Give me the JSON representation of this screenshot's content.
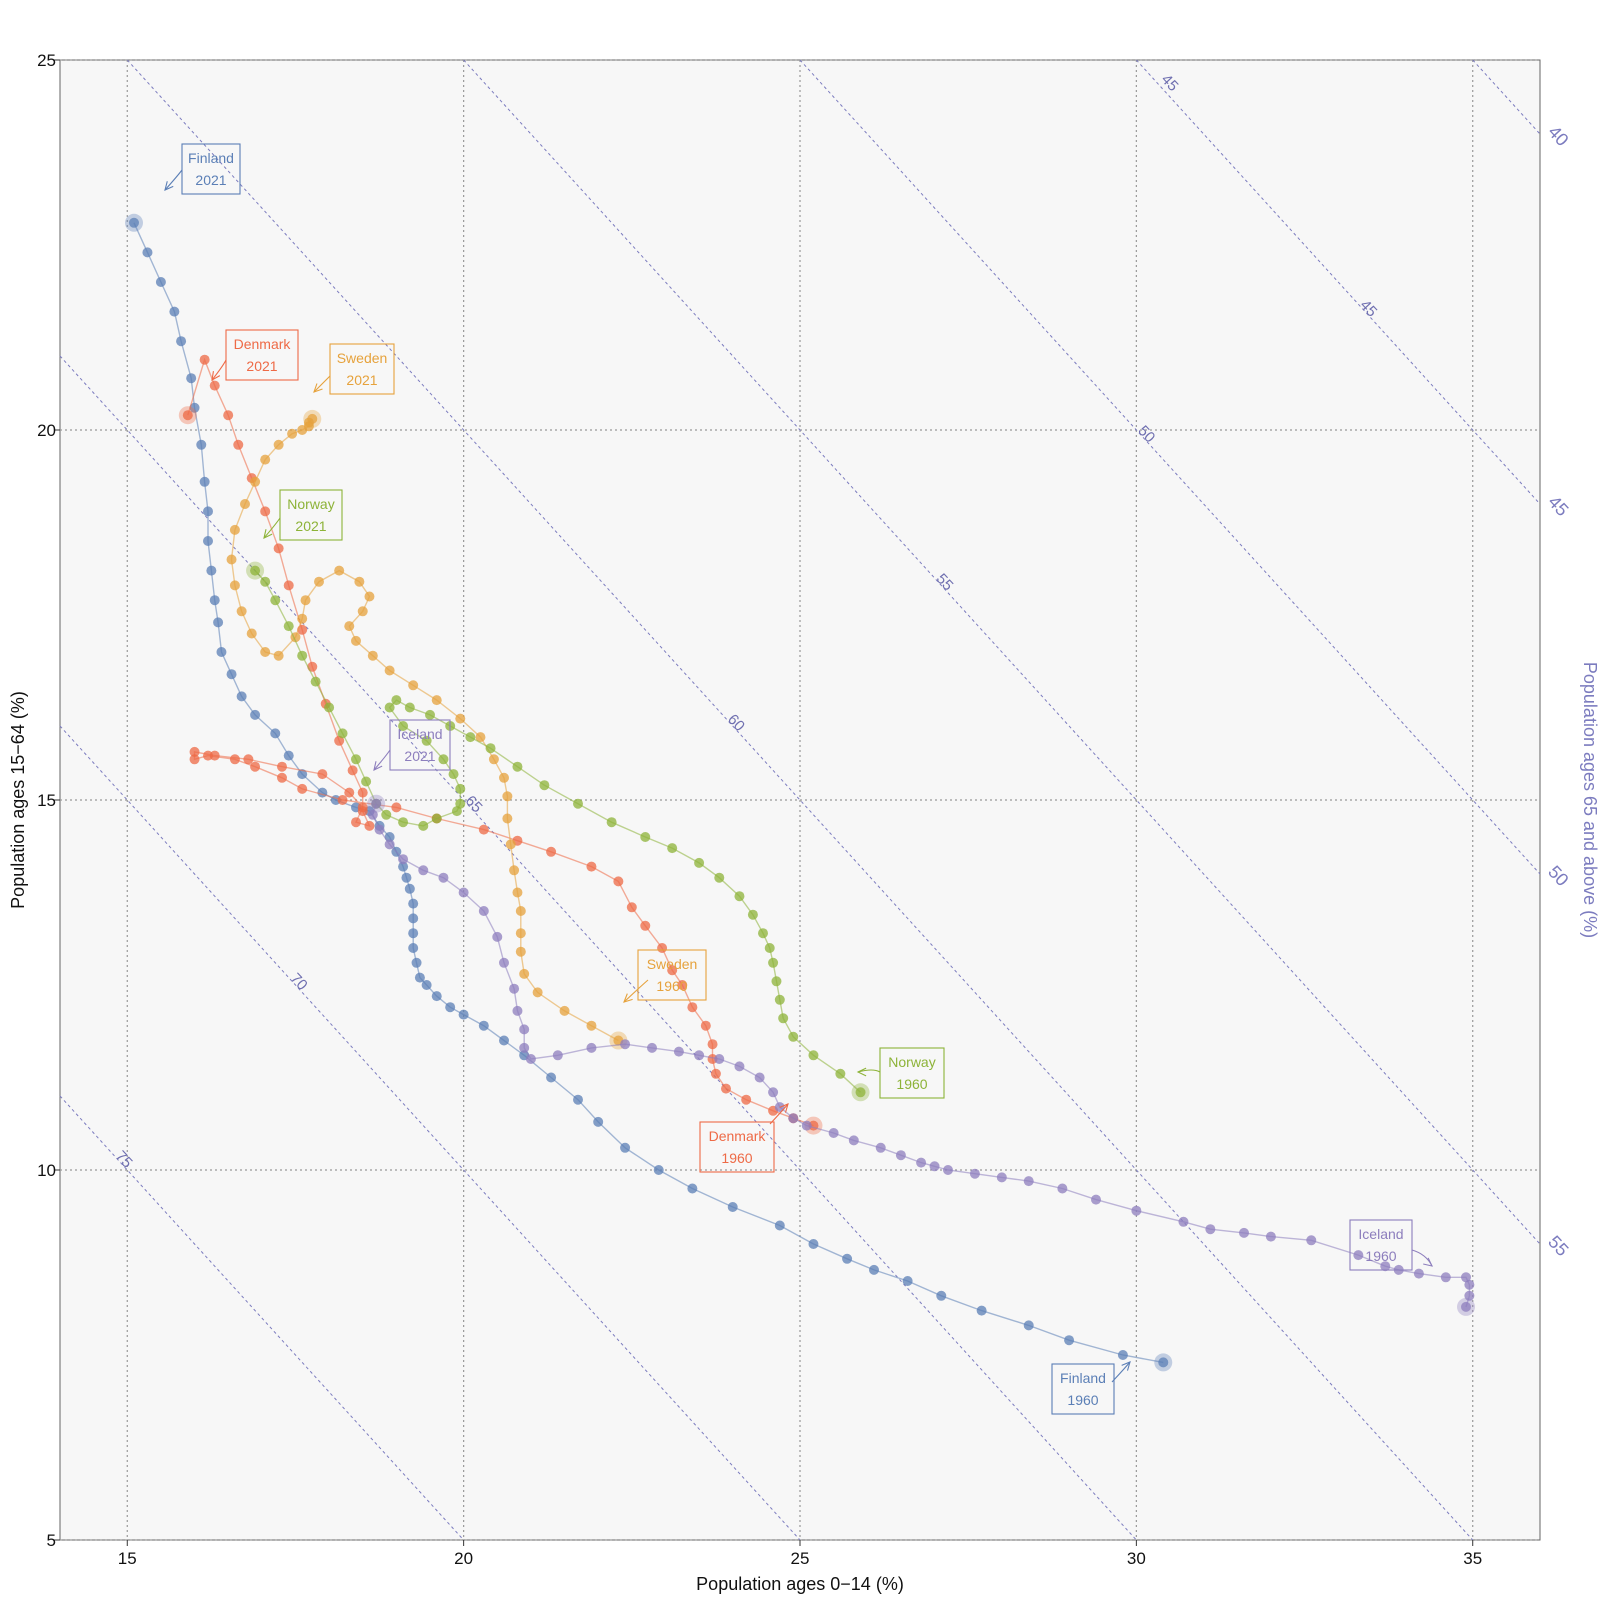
{
  "chart_data": {
    "type": "scatter",
    "xlabel": "Population ages 0−14 (%)",
    "ylabel": "Population ages 15−64 (%)",
    "right_label": "Population ages 65 and above (%)",
    "xlim": [
      14,
      36
    ],
    "ylim": [
      5,
      25
    ],
    "xticks": [
      "15",
      "20",
      "25",
      "30",
      "35"
    ],
    "yticks": [
      "5",
      "10",
      "15",
      "20",
      "25"
    ],
    "iso_lines": [
      40,
      45,
      50,
      55,
      60,
      65,
      70,
      75
    ],
    "iso_labels": [
      "40",
      "45",
      "45",
      "50",
      "50",
      "55",
      "55",
      "60",
      "65",
      "70",
      "75"
    ],
    "right_ticks": [
      "40",
      "45",
      "50",
      "55"
    ],
    "grid": true,
    "series": [
      {
        "name": "Finland",
        "color": "#5b7fb6",
        "start": "1960",
        "end": "2021",
        "points": [
          [
            30.4,
            7.4
          ],
          [
            29.8,
            7.5
          ],
          [
            29.0,
            7.7
          ],
          [
            28.4,
            7.9
          ],
          [
            27.7,
            8.1
          ],
          [
            27.1,
            8.3
          ],
          [
            26.6,
            8.5
          ],
          [
            26.1,
            8.65
          ],
          [
            25.7,
            8.8
          ],
          [
            25.2,
            9.0
          ],
          [
            24.7,
            9.25
          ],
          [
            24.0,
            9.5
          ],
          [
            23.4,
            9.75
          ],
          [
            22.9,
            10.0
          ],
          [
            22.4,
            10.3
          ],
          [
            22.0,
            10.65
          ],
          [
            21.7,
            10.95
          ],
          [
            21.3,
            11.25
          ],
          [
            20.9,
            11.55
          ],
          [
            20.6,
            11.75
          ],
          [
            20.3,
            11.95
          ],
          [
            20.0,
            12.1
          ],
          [
            19.8,
            12.2
          ],
          [
            19.6,
            12.35
          ],
          [
            19.45,
            12.5
          ],
          [
            19.35,
            12.6
          ],
          [
            19.3,
            12.8
          ],
          [
            19.25,
            13.0
          ],
          [
            19.25,
            13.2
          ],
          [
            19.25,
            13.4
          ],
          [
            19.25,
            13.6
          ],
          [
            19.2,
            13.8
          ],
          [
            19.15,
            13.95
          ],
          [
            19.1,
            14.1
          ],
          [
            19.0,
            14.3
          ],
          [
            18.9,
            14.5
          ],
          [
            18.75,
            14.65
          ],
          [
            18.6,
            14.85
          ],
          [
            18.4,
            14.9
          ],
          [
            18.1,
            15.0
          ],
          [
            17.9,
            15.1
          ],
          [
            17.6,
            15.35
          ],
          [
            17.4,
            15.6
          ],
          [
            17.2,
            15.9
          ],
          [
            16.9,
            16.15
          ],
          [
            16.7,
            16.4
          ],
          [
            16.55,
            16.7
          ],
          [
            16.4,
            17.0
          ],
          [
            16.35,
            17.4
          ],
          [
            16.3,
            17.7
          ],
          [
            16.25,
            18.1
          ],
          [
            16.2,
            18.5
          ],
          [
            16.2,
            18.9
          ],
          [
            16.15,
            19.3
          ],
          [
            16.1,
            19.8
          ],
          [
            16.0,
            20.3
          ],
          [
            15.95,
            20.7
          ],
          [
            15.8,
            21.2
          ],
          [
            15.7,
            21.6
          ],
          [
            15.5,
            22.0
          ],
          [
            15.3,
            22.4
          ],
          [
            15.1,
            22.8
          ]
        ]
      },
      {
        "name": "Denmark",
        "color": "#ee6a46",
        "start": "1960",
        "end": "2021",
        "points": [
          [
            25.2,
            10.6
          ],
          [
            24.9,
            10.7
          ],
          [
            24.6,
            10.8
          ],
          [
            24.2,
            10.95
          ],
          [
            23.9,
            11.1
          ],
          [
            23.75,
            11.3
          ],
          [
            23.7,
            11.5
          ],
          [
            23.7,
            11.7
          ],
          [
            23.6,
            11.95
          ],
          [
            23.4,
            12.2
          ],
          [
            23.25,
            12.5
          ],
          [
            23.1,
            12.7
          ],
          [
            22.95,
            13.0
          ],
          [
            22.7,
            13.3
          ],
          [
            22.5,
            13.55
          ],
          [
            22.3,
            13.9
          ],
          [
            21.9,
            14.1
          ],
          [
            21.3,
            14.3
          ],
          [
            20.8,
            14.45
          ],
          [
            20.3,
            14.6
          ],
          [
            19.6,
            14.75
          ],
          [
            19.0,
            14.9
          ],
          [
            18.2,
            15.0
          ],
          [
            17.6,
            15.15
          ],
          [
            17.3,
            15.3
          ],
          [
            16.9,
            15.45
          ],
          [
            16.6,
            15.55
          ],
          [
            16.2,
            15.6
          ],
          [
            16.0,
            15.55
          ],
          [
            16.0,
            15.65
          ],
          [
            16.3,
            15.6
          ],
          [
            16.8,
            15.55
          ],
          [
            17.3,
            15.45
          ],
          [
            17.9,
            15.35
          ],
          [
            18.3,
            15.1
          ],
          [
            18.5,
            14.9
          ],
          [
            18.4,
            14.7
          ],
          [
            18.6,
            14.65
          ],
          [
            18.5,
            14.85
          ],
          [
            18.5,
            15.1
          ],
          [
            18.35,
            15.4
          ],
          [
            18.15,
            15.8
          ],
          [
            17.95,
            16.3
          ],
          [
            17.75,
            16.8
          ],
          [
            17.6,
            17.3
          ],
          [
            17.4,
            17.9
          ],
          [
            17.25,
            18.4
          ],
          [
            17.05,
            18.9
          ],
          [
            16.85,
            19.35
          ],
          [
            16.65,
            19.8
          ],
          [
            16.5,
            20.2
          ],
          [
            16.3,
            20.6
          ],
          [
            16.15,
            20.95
          ],
          [
            15.9,
            20.2
          ]
        ]
      },
      {
        "name": "Sweden",
        "color": "#e6a23c",
        "start": "1960",
        "end": "2021",
        "points": [
          [
            22.3,
            11.75
          ],
          [
            21.9,
            11.95
          ],
          [
            21.5,
            12.15
          ],
          [
            21.1,
            12.4
          ],
          [
            20.9,
            12.65
          ],
          [
            20.85,
            12.95
          ],
          [
            20.85,
            13.2
          ],
          [
            20.85,
            13.5
          ],
          [
            20.8,
            13.75
          ],
          [
            20.75,
            14.05
          ],
          [
            20.7,
            14.4
          ],
          [
            20.65,
            14.75
          ],
          [
            20.65,
            15.05
          ],
          [
            20.6,
            15.3
          ],
          [
            20.45,
            15.55
          ],
          [
            20.25,
            15.85
          ],
          [
            19.95,
            16.1
          ],
          [
            19.6,
            16.35
          ],
          [
            19.25,
            16.55
          ],
          [
            18.9,
            16.75
          ],
          [
            18.65,
            16.95
          ],
          [
            18.4,
            17.15
          ],
          [
            18.3,
            17.35
          ],
          [
            18.5,
            17.55
          ],
          [
            18.6,
            17.75
          ],
          [
            18.45,
            17.95
          ],
          [
            18.15,
            18.1
          ],
          [
            17.85,
            17.95
          ],
          [
            17.65,
            17.7
          ],
          [
            17.6,
            17.45
          ],
          [
            17.5,
            17.2
          ],
          [
            17.25,
            16.95
          ],
          [
            17.05,
            17.0
          ],
          [
            16.85,
            17.25
          ],
          [
            16.7,
            17.55
          ],
          [
            16.6,
            17.9
          ],
          [
            16.55,
            18.25
          ],
          [
            16.6,
            18.65
          ],
          [
            16.75,
            19.0
          ],
          [
            16.9,
            19.3
          ],
          [
            17.05,
            19.6
          ],
          [
            17.25,
            19.8
          ],
          [
            17.45,
            19.95
          ],
          [
            17.6,
            20.0
          ],
          [
            17.7,
            20.05
          ],
          [
            17.7,
            20.1
          ],
          [
            17.75,
            20.15
          ]
        ]
      },
      {
        "name": "Norway",
        "color": "#8db338",
        "start": "1960",
        "end": "2021",
        "points": [
          [
            25.9,
            11.05
          ],
          [
            25.6,
            11.3
          ],
          [
            25.2,
            11.55
          ],
          [
            24.9,
            11.8
          ],
          [
            24.75,
            12.05
          ],
          [
            24.7,
            12.3
          ],
          [
            24.65,
            12.55
          ],
          [
            24.6,
            12.8
          ],
          [
            24.55,
            13.0
          ],
          [
            24.45,
            13.2
          ],
          [
            24.3,
            13.45
          ],
          [
            24.1,
            13.7
          ],
          [
            23.8,
            13.95
          ],
          [
            23.5,
            14.15
          ],
          [
            23.1,
            14.35
          ],
          [
            22.7,
            14.5
          ],
          [
            22.2,
            14.7
          ],
          [
            21.7,
            14.95
          ],
          [
            21.2,
            15.2
          ],
          [
            20.8,
            15.45
          ],
          [
            20.4,
            15.7
          ],
          [
            20.1,
            15.85
          ],
          [
            19.8,
            16.0
          ],
          [
            19.5,
            16.15
          ],
          [
            19.2,
            16.25
          ],
          [
            19.0,
            16.35
          ],
          [
            18.9,
            16.25
          ],
          [
            19.1,
            16.0
          ],
          [
            19.45,
            15.8
          ],
          [
            19.7,
            15.55
          ],
          [
            19.85,
            15.35
          ],
          [
            19.95,
            15.15
          ],
          [
            19.95,
            14.95
          ],
          [
            19.9,
            14.85
          ],
          [
            19.6,
            14.75
          ],
          [
            19.4,
            14.65
          ],
          [
            19.1,
            14.7
          ],
          [
            18.85,
            14.8
          ],
          [
            18.7,
            14.95
          ],
          [
            18.55,
            15.25
          ],
          [
            18.4,
            15.55
          ],
          [
            18.2,
            15.9
          ],
          [
            18.0,
            16.25
          ],
          [
            17.8,
            16.6
          ],
          [
            17.6,
            16.95
          ],
          [
            17.4,
            17.35
          ],
          [
            17.2,
            17.7
          ],
          [
            17.05,
            17.95
          ],
          [
            16.9,
            18.1
          ]
        ]
      },
      {
        "name": "Iceland",
        "color": "#8d7ebd",
        "start": "1960",
        "end": "2021",
        "points": [
          [
            34.9,
            8.15
          ],
          [
            34.95,
            8.3
          ],
          [
            34.95,
            8.45
          ],
          [
            34.9,
            8.55
          ],
          [
            34.6,
            8.55
          ],
          [
            34.2,
            8.6
          ],
          [
            33.9,
            8.65
          ],
          [
            33.7,
            8.7
          ],
          [
            33.3,
            8.85
          ],
          [
            32.6,
            9.05
          ],
          [
            32.0,
            9.1
          ],
          [
            31.6,
            9.15
          ],
          [
            31.1,
            9.2
          ],
          [
            30.7,
            9.3
          ],
          [
            30.0,
            9.45
          ],
          [
            29.4,
            9.6
          ],
          [
            28.9,
            9.75
          ],
          [
            28.4,
            9.85
          ],
          [
            28.0,
            9.9
          ],
          [
            27.6,
            9.95
          ],
          [
            27.2,
            10.0
          ],
          [
            27.0,
            10.05
          ],
          [
            26.8,
            10.1
          ],
          [
            26.5,
            10.2
          ],
          [
            26.2,
            10.3
          ],
          [
            25.8,
            10.4
          ],
          [
            25.5,
            10.5
          ],
          [
            25.1,
            10.6
          ],
          [
            24.9,
            10.7
          ],
          [
            24.7,
            10.85
          ],
          [
            24.6,
            11.05
          ],
          [
            24.4,
            11.25
          ],
          [
            24.1,
            11.4
          ],
          [
            23.8,
            11.5
          ],
          [
            23.5,
            11.55
          ],
          [
            23.2,
            11.6
          ],
          [
            22.8,
            11.65
          ],
          [
            22.4,
            11.7
          ],
          [
            21.9,
            11.65
          ],
          [
            21.4,
            11.55
          ],
          [
            21.0,
            11.5
          ],
          [
            20.9,
            11.65
          ],
          [
            20.9,
            11.9
          ],
          [
            20.8,
            12.15
          ],
          [
            20.75,
            12.45
          ],
          [
            20.6,
            12.8
          ],
          [
            20.5,
            13.15
          ],
          [
            20.3,
            13.5
          ],
          [
            20.0,
            13.75
          ],
          [
            19.7,
            13.95
          ],
          [
            19.4,
            14.05
          ],
          [
            19.1,
            14.2
          ],
          [
            18.9,
            14.4
          ],
          [
            18.75,
            14.6
          ],
          [
            18.65,
            14.8
          ],
          [
            18.7,
            14.95
          ]
        ]
      }
    ],
    "annotations": [
      {
        "name": "Finland",
        "year": "2021",
        "color": "#5b7fb6"
      },
      {
        "name": "Denmark",
        "year": "2021",
        "color": "#ee6a46"
      },
      {
        "name": "Sweden",
        "year": "2021",
        "color": "#e6a23c"
      },
      {
        "name": "Norway",
        "year": "2021",
        "color": "#8db338"
      },
      {
        "name": "Iceland",
        "year": "2021",
        "color": "#8d7ebd"
      },
      {
        "name": "Sweden",
        "year": "1960",
        "color": "#e6a23c"
      },
      {
        "name": "Norway",
        "year": "1960",
        "color": "#8db338"
      },
      {
        "name": "Denmark",
        "year": "1960",
        "color": "#ee6a46"
      },
      {
        "name": "Iceland",
        "year": "1960",
        "color": "#8d7ebd"
      },
      {
        "name": "Finland",
        "year": "1960",
        "color": "#5b7fb6"
      }
    ]
  }
}
